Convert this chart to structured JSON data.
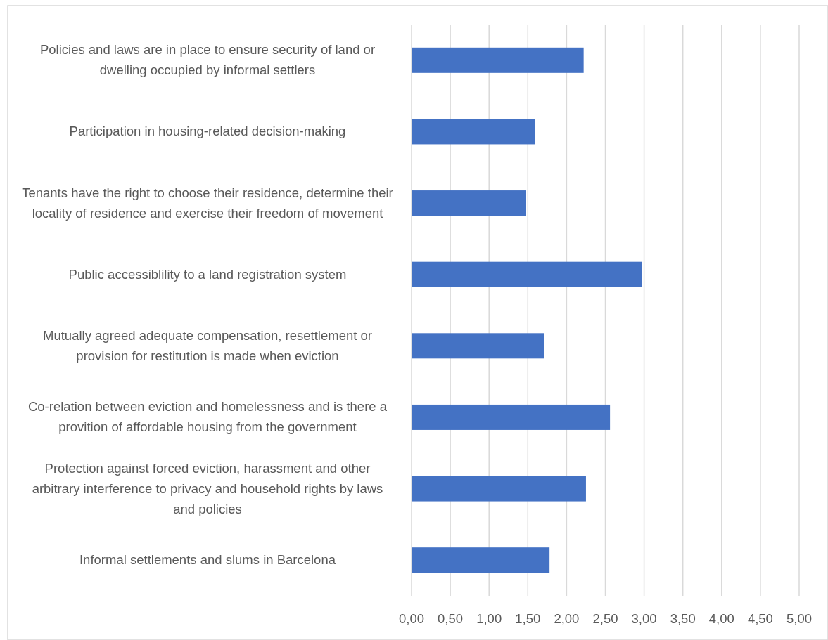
{
  "chart_data": {
    "type": "bar",
    "orientation": "horizontal",
    "categories": [
      "Policies and laws are in place to ensure security of land or dwelling occupied by informal settlers",
      "Participation in housing-related decision-making",
      "Tenants have the right to choose their residence, determine their locality of residence and exercise their freedom of movement",
      "Public accessiblility to a land registration system",
      "Mutually agreed adequate compensation, resettlement or provision for restitution is made when eviction",
      "Co-relation between eviction and homelessness and is there a provition of affordable housing from the government",
      "Protection against forced eviction, harassment and other arbitrary interference to privacy and household rights by laws and policies",
      "Informal settlements and slums in Barcelona"
    ],
    "values": [
      2.22,
      1.59,
      1.47,
      2.97,
      1.71,
      2.56,
      2.25,
      1.78
    ],
    "color": "#4472c4",
    "xlim": [
      0,
      5
    ],
    "xticks": [
      {
        "value": 0,
        "label": "0,00"
      },
      {
        "value": 0.5,
        "label": "0,50"
      },
      {
        "value": 1,
        "label": "1,00"
      },
      {
        "value": 1.5,
        "label": "1,50"
      },
      {
        "value": 2,
        "label": "2,00"
      },
      {
        "value": 2.5,
        "label": "2,50"
      },
      {
        "value": 3,
        "label": "3,00"
      },
      {
        "value": 3.5,
        "label": "3,50"
      },
      {
        "value": 4,
        "label": "4,00"
      },
      {
        "value": 4.5,
        "label": "4,50"
      },
      {
        "value": 5,
        "label": "5,00"
      }
    ],
    "grid": "x"
  }
}
